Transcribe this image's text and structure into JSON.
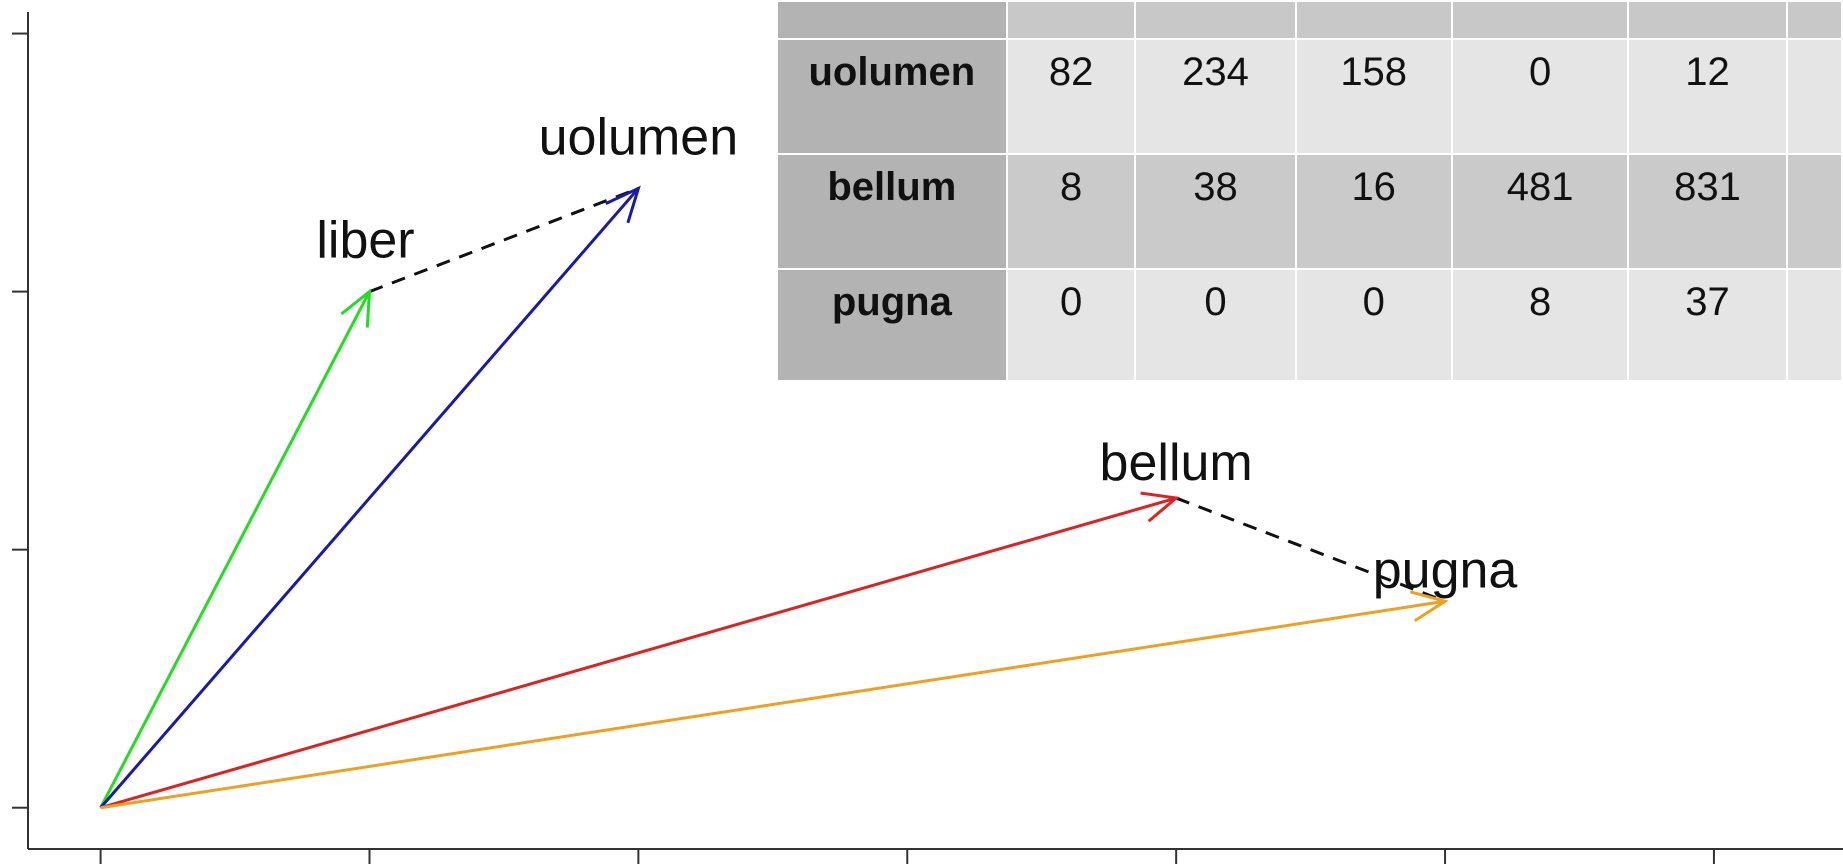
{
  "chart_data": {
    "type": "vector-plot",
    "title": "",
    "xlabel": "",
    "ylabel": "",
    "vectors": [
      {
        "word": "liber",
        "x": 1,
        "y": 2,
        "color": "#22dd22"
      },
      {
        "word": "uolumen",
        "x": 2,
        "y": 2.4,
        "color": "#1a1aa8"
      },
      {
        "word": "bellum",
        "x": 4,
        "y": 1.2,
        "color": "#dd2222"
      },
      {
        "word": "pugna",
        "x": 5,
        "y": 0.8,
        "color": "#eea020"
      }
    ],
    "dashed_links": [
      [
        "liber",
        "uolumen"
      ],
      [
        "bellum",
        "pugna"
      ]
    ],
    "origin": {
      "x": 0,
      "y": 0
    },
    "xlim": [
      -0.27,
      6.48
    ],
    "ylim": [
      -0.16,
      3.13
    ],
    "x_ticks": [
      0,
      1,
      2,
      3,
      4,
      5,
      6
    ],
    "y_ticks": [
      0,
      1,
      2,
      3
    ]
  },
  "table": {
    "columns": 6,
    "rows": [
      {
        "label": "uolumen",
        "values": [
          "82",
          "234",
          "158",
          "0",
          "12"
        ]
      },
      {
        "label": "bellum",
        "values": [
          "8",
          "38",
          "16",
          "481",
          "831"
        ]
      },
      {
        "label": "pugna",
        "values": [
          "0",
          "0",
          "0",
          "8",
          "37"
        ]
      }
    ]
  }
}
